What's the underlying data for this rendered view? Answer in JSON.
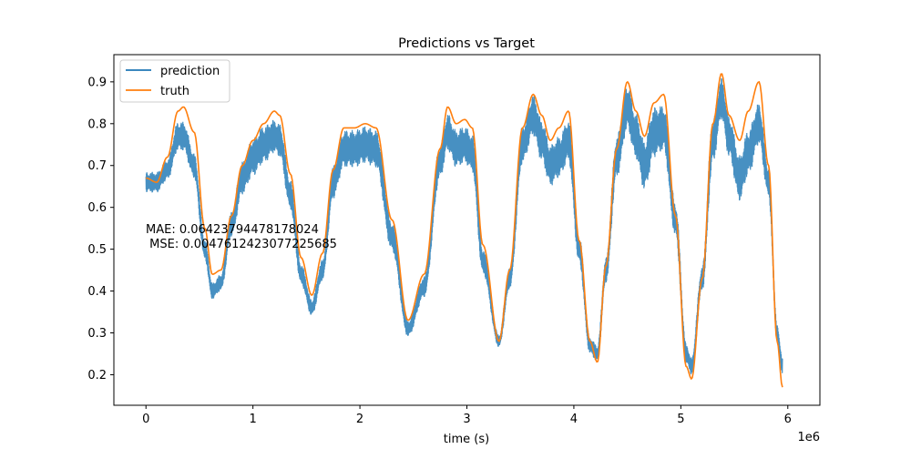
{
  "chart_data": {
    "type": "line",
    "title": "Predictions vs Target",
    "xlabel": "time (s)",
    "ylabel": "",
    "x_offset_label": "1e6",
    "xlim": [
      -0.3,
      6.3
    ],
    "ylim": [
      0.127,
      0.965
    ],
    "x_ticks": [
      0,
      1,
      2,
      3,
      4,
      5,
      6
    ],
    "x_tick_labels": [
      "0",
      "1",
      "2",
      "3",
      "4",
      "5",
      "6"
    ],
    "y_ticks": [
      0.2,
      0.3,
      0.4,
      0.5,
      0.6,
      0.7,
      0.8,
      0.9
    ],
    "y_tick_labels": [
      "0.2",
      "0.3",
      "0.4",
      "0.5",
      "0.6",
      "0.7",
      "0.8",
      "0.9"
    ],
    "grid": false,
    "legend_position": "top-left",
    "annotation": {
      "lines": [
        "MAE: 0.06423794478178024",
        " MSE: 0.0047612423077225685"
      ],
      "x": 0.0,
      "y": 0.555
    },
    "series": [
      {
        "name": "truth",
        "color": "#ff7f0e",
        "x": [
          0.0,
          0.1,
          0.2,
          0.3,
          0.35,
          0.45,
          0.55,
          0.62,
          0.7,
          0.8,
          0.9,
          1.0,
          1.1,
          1.2,
          1.25,
          1.35,
          1.45,
          1.55,
          1.65,
          1.75,
          1.85,
          1.95,
          2.05,
          2.15,
          2.3,
          2.45,
          2.6,
          2.75,
          2.82,
          2.9,
          2.98,
          3.05,
          3.15,
          3.3,
          3.4,
          3.52,
          3.62,
          3.7,
          3.78,
          3.86,
          3.95,
          4.05,
          4.15,
          4.22,
          4.3,
          4.4,
          4.5,
          4.58,
          4.66,
          4.75,
          4.84,
          4.95,
          5.05,
          5.1,
          5.2,
          5.3,
          5.38,
          5.45,
          5.55,
          5.63,
          5.73,
          5.82,
          5.9,
          5.95
        ],
        "y": [
          0.67,
          0.66,
          0.72,
          0.83,
          0.84,
          0.78,
          0.55,
          0.44,
          0.45,
          0.58,
          0.7,
          0.76,
          0.8,
          0.83,
          0.82,
          0.68,
          0.48,
          0.39,
          0.49,
          0.69,
          0.79,
          0.79,
          0.8,
          0.79,
          0.57,
          0.33,
          0.44,
          0.74,
          0.84,
          0.8,
          0.81,
          0.79,
          0.51,
          0.28,
          0.45,
          0.79,
          0.87,
          0.82,
          0.76,
          0.79,
          0.83,
          0.52,
          0.28,
          0.23,
          0.46,
          0.74,
          0.9,
          0.83,
          0.77,
          0.85,
          0.87,
          0.58,
          0.22,
          0.19,
          0.43,
          0.8,
          0.92,
          0.82,
          0.76,
          0.83,
          0.9,
          0.7,
          0.28,
          0.17
        ]
      },
      {
        "name": "prediction",
        "color": "#1f77b4",
        "x": [
          0.0,
          0.1,
          0.2,
          0.3,
          0.35,
          0.45,
          0.55,
          0.62,
          0.7,
          0.8,
          0.9,
          1.0,
          1.1,
          1.2,
          1.25,
          1.35,
          1.45,
          1.55,
          1.65,
          1.75,
          1.85,
          1.95,
          2.05,
          2.15,
          2.3,
          2.45,
          2.6,
          2.75,
          2.82,
          2.9,
          2.98,
          3.05,
          3.15,
          3.3,
          3.4,
          3.52,
          3.62,
          3.7,
          3.78,
          3.86,
          3.95,
          4.05,
          4.15,
          4.22,
          4.3,
          4.4,
          4.5,
          4.58,
          4.66,
          4.75,
          4.84,
          4.95,
          5.05,
          5.1,
          5.2,
          5.3,
          5.38,
          5.45,
          5.55,
          5.63,
          5.73,
          5.82,
          5.9,
          5.95
        ],
        "y": [
          0.66,
          0.66,
          0.69,
          0.77,
          0.77,
          0.7,
          0.5,
          0.4,
          0.42,
          0.56,
          0.67,
          0.72,
          0.75,
          0.77,
          0.76,
          0.63,
          0.44,
          0.36,
          0.45,
          0.66,
          0.74,
          0.74,
          0.75,
          0.74,
          0.53,
          0.31,
          0.41,
          0.71,
          0.78,
          0.74,
          0.75,
          0.73,
          0.47,
          0.28,
          0.43,
          0.75,
          0.82,
          0.76,
          0.7,
          0.72,
          0.76,
          0.5,
          0.27,
          0.25,
          0.45,
          0.72,
          0.84,
          0.77,
          0.7,
          0.78,
          0.79,
          0.57,
          0.25,
          0.22,
          0.43,
          0.76,
          0.86,
          0.77,
          0.67,
          0.73,
          0.8,
          0.66,
          0.3,
          0.22
        ],
        "noise_amplitude": [
          0.025,
          0.025,
          0.025,
          0.035,
          0.035,
          0.03,
          0.025,
          0.02,
          0.02,
          0.03,
          0.04,
          0.045,
          0.045,
          0.04,
          0.04,
          0.035,
          0.025,
          0.02,
          0.025,
          0.04,
          0.045,
          0.045,
          0.045,
          0.045,
          0.035,
          0.02,
          0.025,
          0.04,
          0.045,
          0.045,
          0.045,
          0.045,
          0.03,
          0.015,
          0.025,
          0.045,
          0.05,
          0.05,
          0.05,
          0.05,
          0.05,
          0.035,
          0.02,
          0.02,
          0.03,
          0.05,
          0.055,
          0.055,
          0.06,
          0.06,
          0.055,
          0.04,
          0.025,
          0.02,
          0.03,
          0.055,
          0.05,
          0.05,
          0.055,
          0.055,
          0.05,
          0.035,
          0.02,
          0.02
        ]
      }
    ]
  }
}
